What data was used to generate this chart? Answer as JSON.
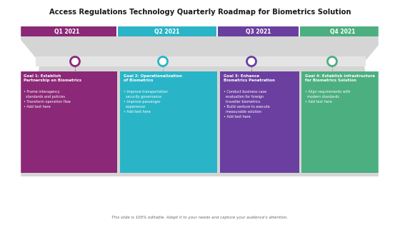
{
  "title": "Access Regulations Technology Quarterly Roadmap for Biometrics Solution",
  "quarters": [
    "Q1 2021",
    "Q2 2021",
    "Q3 2021",
    "Q4 2021"
  ],
  "quarter_colors": [
    "#8B2877",
    "#29B5C7",
    "#6B3FA0",
    "#4CAF80"
  ],
  "circle_colors": [
    "#8B2877",
    "#29B5C7",
    "#6B3FA0",
    "#4CAF80"
  ],
  "goals": [
    "Goal 1: Establish\nPartnership on Biometrics",
    "Goal 2: Operationalization\nof Biometrics",
    "Goal 3: Enhance\nBiometrics Penetration",
    "Goal 4: Establish infrastructure\nfor Biometrics Solution"
  ],
  "bullets": [
    "• Frame interagency\n  standards and policies\n• Transform operation flow\n• Add text here",
    "• Improve transportation\n  security governance\n• Improve passenger\n  experience\n• Add text here",
    "• Conduct business case\n  evaluation for foreign\n  traveller biometrics\n• Build venture to execute\n  measurable solution\n• Add text here",
    "• Align requirements with\n  modern standards\n• Add text here"
  ],
  "card_colors": [
    "#8B2877",
    "#29B5C7",
    "#6B3FA0",
    "#4CAF80"
  ],
  "footer": "This slide is 100% editable. Adapt it to your needs and capture your audience's attention.",
  "bg_color": "#FFFFFF",
  "funnel_color": "#DCDCDC",
  "timeline_color": "#E4E4E4"
}
